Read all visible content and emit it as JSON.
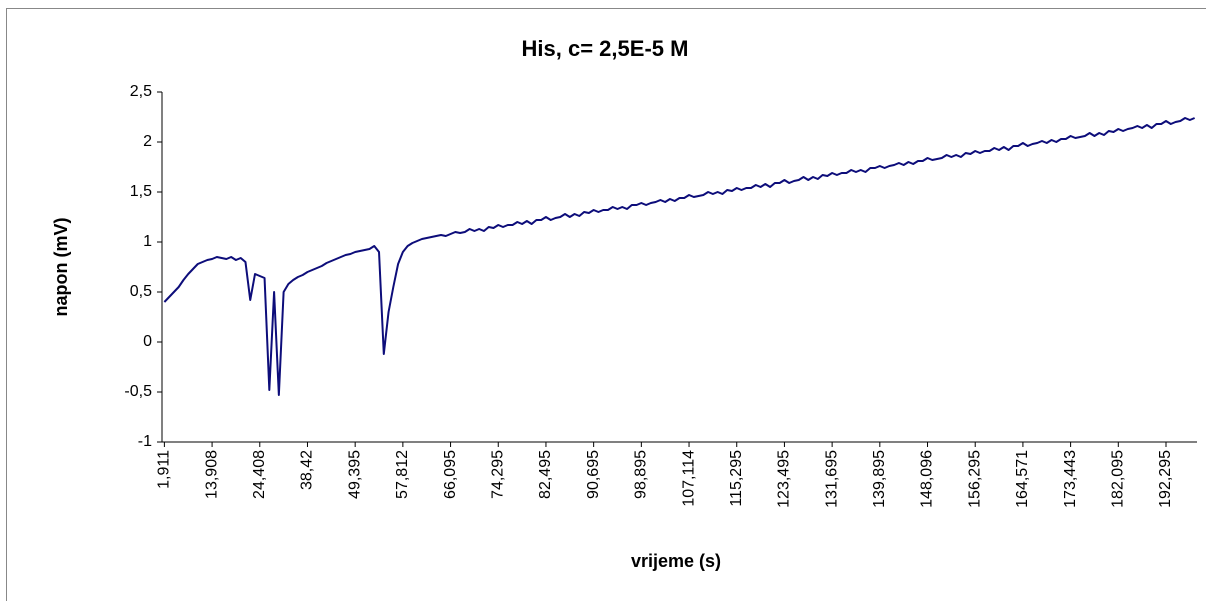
{
  "chart_data": {
    "type": "line",
    "title": "His, c= 2,5E-5 M",
    "xlabel": "vrijeme (s)",
    "ylabel": "napon (mV)",
    "categories": [
      "1,911",
      null,
      null,
      null,
      null,
      null,
      null,
      null,
      null,
      null,
      "13,908",
      null,
      null,
      null,
      null,
      null,
      null,
      null,
      null,
      null,
      "24,408",
      null,
      null,
      null,
      null,
      null,
      null,
      null,
      null,
      null,
      "38,42",
      null,
      null,
      null,
      null,
      null,
      null,
      null,
      null,
      null,
      "49,395",
      null,
      null,
      null,
      null,
      null,
      null,
      null,
      null,
      null,
      "57,812",
      null,
      null,
      null,
      null,
      null,
      null,
      null,
      null,
      null,
      "66,095",
      null,
      null,
      null,
      null,
      null,
      null,
      null,
      null,
      null,
      "74,295",
      null,
      null,
      null,
      null,
      null,
      null,
      null,
      null,
      null,
      "82,495",
      null,
      null,
      null,
      null,
      null,
      null,
      null,
      null,
      null,
      "90,695",
      null,
      null,
      null,
      null,
      null,
      null,
      null,
      null,
      null,
      "98,895",
      null,
      null,
      null,
      null,
      null,
      null,
      null,
      null,
      null,
      "107,114",
      null,
      null,
      null,
      null,
      null,
      null,
      null,
      null,
      null,
      "115,295",
      null,
      null,
      null,
      null,
      null,
      null,
      null,
      null,
      null,
      "123,495",
      null,
      null,
      null,
      null,
      null,
      null,
      null,
      null,
      null,
      "131,695",
      null,
      null,
      null,
      null,
      null,
      null,
      null,
      null,
      null,
      "139,895",
      null,
      null,
      null,
      null,
      null,
      null,
      null,
      null,
      null,
      "148,096",
      null,
      null,
      null,
      null,
      null,
      null,
      null,
      null,
      null,
      "156,295",
      null,
      null,
      null,
      null,
      null,
      null,
      null,
      null,
      null,
      "164,571",
      null,
      null,
      null,
      null,
      null,
      null,
      null,
      null,
      null,
      "173,443",
      null,
      null,
      null,
      null,
      null,
      null,
      null,
      null,
      null,
      "182,095",
      null,
      null,
      null,
      null,
      null,
      null,
      null,
      null,
      null,
      "192,295",
      null,
      null,
      null,
      null,
      null,
      null
    ],
    "color": "#0d0d7a",
    "values": [
      0.4,
      0.45,
      0.5,
      0.55,
      0.62,
      0.68,
      0.73,
      0.78,
      0.8,
      0.82,
      0.83,
      0.85,
      0.84,
      0.83,
      0.85,
      0.82,
      0.84,
      0.8,
      0.42,
      0.68,
      0.66,
      0.64,
      -0.48,
      0.5,
      -0.53,
      0.5,
      0.58,
      0.62,
      0.65,
      0.67,
      0.7,
      0.72,
      0.74,
      0.76,
      0.79,
      0.81,
      0.83,
      0.85,
      0.87,
      0.88,
      0.9,
      0.91,
      0.92,
      0.93,
      0.96,
      0.9,
      -0.12,
      0.3,
      0.55,
      0.78,
      0.9,
      0.96,
      0.99,
      1.01,
      1.03,
      1.04,
      1.05,
      1.06,
      1.07,
      1.06,
      1.08,
      1.1,
      1.09,
      1.1,
      1.13,
      1.11,
      1.13,
      1.11,
      1.15,
      1.14,
      1.17,
      1.15,
      1.17,
      1.17,
      1.2,
      1.18,
      1.21,
      1.18,
      1.22,
      1.22,
      1.25,
      1.22,
      1.24,
      1.25,
      1.28,
      1.25,
      1.28,
      1.26,
      1.3,
      1.29,
      1.32,
      1.3,
      1.32,
      1.32,
      1.35,
      1.33,
      1.35,
      1.33,
      1.37,
      1.37,
      1.39,
      1.37,
      1.39,
      1.4,
      1.42,
      1.4,
      1.43,
      1.41,
      1.44,
      1.44,
      1.47,
      1.45,
      1.46,
      1.47,
      1.5,
      1.48,
      1.5,
      1.48,
      1.52,
      1.51,
      1.54,
      1.52,
      1.54,
      1.54,
      1.57,
      1.55,
      1.58,
      1.55,
      1.59,
      1.59,
      1.62,
      1.59,
      1.61,
      1.62,
      1.65,
      1.62,
      1.65,
      1.63,
      1.67,
      1.66,
      1.69,
      1.67,
      1.69,
      1.69,
      1.72,
      1.7,
      1.72,
      1.7,
      1.74,
      1.74,
      1.76,
      1.74,
      1.76,
      1.77,
      1.79,
      1.77,
      1.8,
      1.78,
      1.81,
      1.81,
      1.84,
      1.82,
      1.83,
      1.84,
      1.87,
      1.85,
      1.87,
      1.85,
      1.89,
      1.88,
      1.91,
      1.89,
      1.91,
      1.91,
      1.94,
      1.92,
      1.95,
      1.92,
      1.96,
      1.96,
      1.99,
      1.96,
      1.98,
      1.99,
      2.01,
      1.99,
      2.02,
      2.0,
      2.03,
      2.03,
      2.06,
      2.04,
      2.05,
      2.06,
      2.09,
      2.06,
      2.09,
      2.07,
      2.11,
      2.1,
      2.13,
      2.11,
      2.13,
      2.14,
      2.16,
      2.14,
      2.17,
      2.14,
      2.18,
      2.18,
      2.21,
      2.18,
      2.2,
      2.21,
      2.24,
      2.22,
      2.24
    ],
    "ylim": [
      -1,
      2.5
    ],
    "yticks": [
      -1,
      {
        "value": -0.5,
        "label": "-0,5"
      },
      0,
      {
        "value": 0.5,
        "label": "0,5"
      },
      1,
      {
        "value": 1.5,
        "label": "1,5"
      },
      2,
      {
        "value": 2.5,
        "label": "2,5"
      }
    ],
    "grid": false
  }
}
